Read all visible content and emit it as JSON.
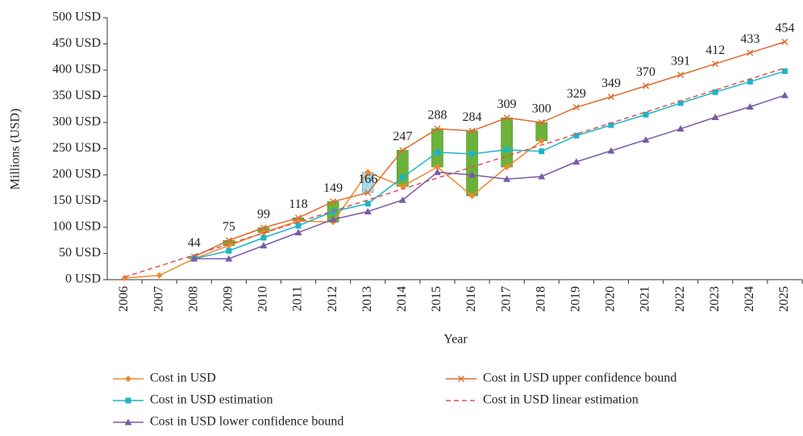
{
  "chart_data": {
    "type": "line",
    "ylabel": "Millions (USD)",
    "xlabel": "Year",
    "categories": [
      "2006",
      "2007",
      "2008",
      "2009",
      "2010",
      "2011",
      "2012",
      "2013",
      "2014",
      "2015",
      "2016",
      "2017",
      "2018",
      "2019",
      "2020",
      "2021",
      "2022",
      "2023",
      "2024",
      "2025"
    ],
    "series": [
      {
        "name": "Cost in USD",
        "color": "#f0882a",
        "marker": "diamond",
        "values": [
          3,
          8,
          40,
          65,
          90,
          112,
          110,
          205,
          178,
          215,
          160,
          215,
          265,
          null,
          null,
          null,
          null,
          null,
          null,
          null
        ]
      },
      {
        "name": "Cost in USD upper confidence bound",
        "color": "#de6a2c",
        "marker": "x",
        "data_labels": true,
        "values": [
          null,
          null,
          44,
          75,
          99,
          118,
          149,
          166,
          247,
          288,
          284,
          309,
          300,
          329,
          349,
          370,
          391,
          412,
          433,
          454
        ]
      },
      {
        "name": "Cost in USD estimation",
        "color": "#1cb4c6",
        "marker": "square",
        "values": [
          null,
          null,
          40,
          55,
          80,
          103,
          130,
          145,
          195,
          243,
          240,
          248,
          245,
          275,
          295,
          315,
          337,
          358,
          378,
          398
        ]
      },
      {
        "name": "Cost in USD linear estimation",
        "color": "#e2514f",
        "marker": "none",
        "dashed": true,
        "values": [
          5,
          26,
          47,
          68,
          89,
          110,
          131,
          152,
          173,
          194,
          215,
          236,
          257,
          278,
          299,
          320,
          341,
          362,
          383,
          404
        ]
      },
      {
        "name": "Cost in USD lower confidence bound",
        "color": "#7a5aa6",
        "marker": "triangle",
        "values": [
          null,
          null,
          40,
          40,
          65,
          90,
          115,
          130,
          152,
          205,
          200,
          192,
          197,
          225,
          246,
          267,
          288,
          310,
          330,
          352
        ]
      }
    ],
    "up_down_bars": {
      "from_series": 0,
      "to_series": 1,
      "up_color": "#6cb23a",
      "down_color": "#a6dbe8"
    },
    "ylim": [
      0,
      500
    ],
    "yticks": [
      {
        "value": 0,
        "label": "0 USD"
      },
      {
        "value": 50,
        "label": "50 USD"
      },
      {
        "value": 100,
        "label": "100 USD"
      },
      {
        "value": 150,
        "label": "150 USD"
      },
      {
        "value": 200,
        "label": "200 USD"
      },
      {
        "value": 250,
        "label": "250 USD"
      },
      {
        "value": 300,
        "label": "300 USD"
      },
      {
        "value": 350,
        "label": "350 USD"
      },
      {
        "value": 400,
        "label": "400 USD"
      },
      {
        "value": 450,
        "label": "450 USD"
      },
      {
        "value": 500,
        "label": "500 USD"
      }
    ],
    "grid": false,
    "legend": "bottom"
  }
}
